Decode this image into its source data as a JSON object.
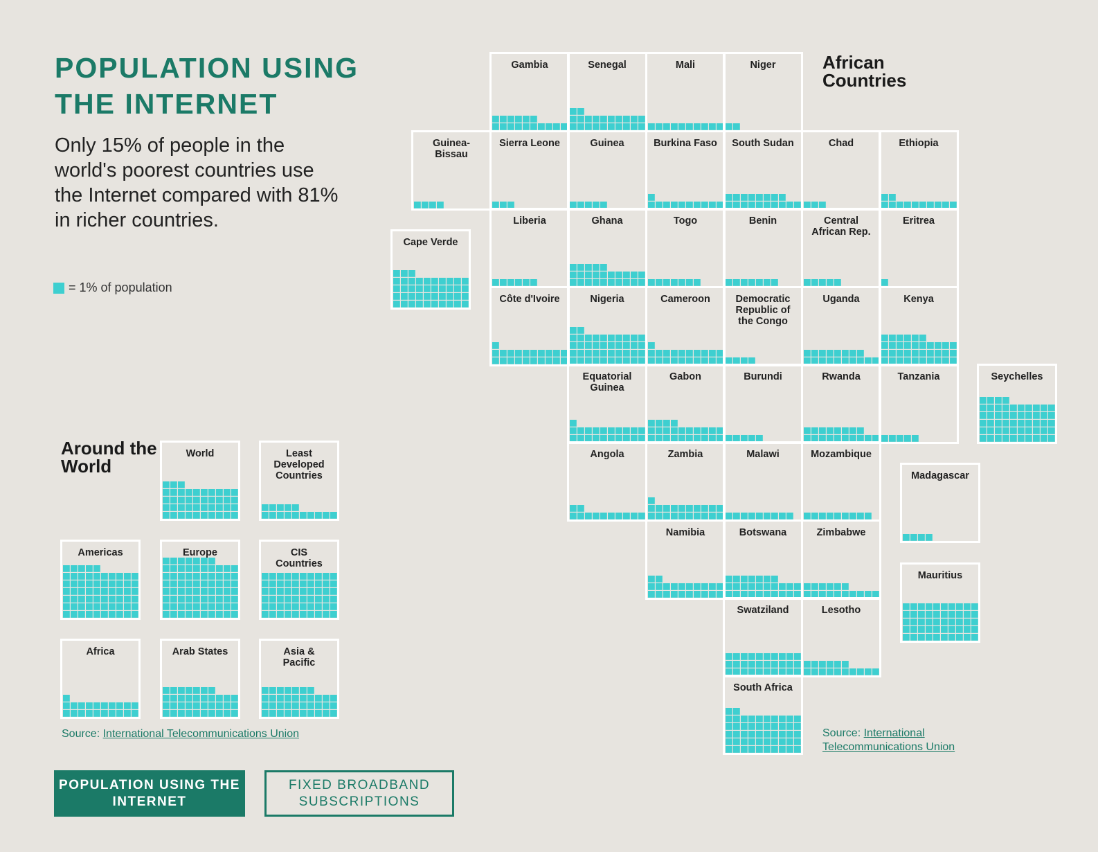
{
  "header": {
    "title": "POPULATION USING THE INTERNET",
    "subtitle": "Only 15% of people in the world's poorest countries use the Internet compared with 81% in richer countries.",
    "legend_text": "= 1% of population"
  },
  "colors": {
    "accent": "#1b7a67",
    "cell": "#3ecfd0",
    "tile_border": "#ffffff",
    "background": "#e7e4df"
  },
  "africa": {
    "heading": "African Countries"
  },
  "world": {
    "heading": "Around the World"
  },
  "sources": {
    "world_prefix": "Source: ",
    "world_link": "International Telecommunications Union",
    "africa_prefix": "Source: ",
    "africa_link": "International Telecommunications Union"
  },
  "buttons": {
    "internet": "POPULATION USING THE INTERNET",
    "broadband": "FIXED BROADBAND SUBSCRIPTIONS"
  },
  "chart_data": [
    {
      "type": "waffle",
      "title": "African Countries",
      "unit": "1 square = 1% of population",
      "series": [
        {
          "name": "Gambia",
          "value": 16
        },
        {
          "name": "Senegal",
          "value": 22
        },
        {
          "name": "Mali",
          "value": 10
        },
        {
          "name": "Niger",
          "value": 2
        },
        {
          "name": "Guinea-\nBissau",
          "value": 4
        },
        {
          "name": "Sierra Leone",
          "value": 3
        },
        {
          "name": "Guinea",
          "value": 5
        },
        {
          "name": "Burkina Faso",
          "value": 11
        },
        {
          "name": "South Sudan",
          "value": 18
        },
        {
          "name": "Chad",
          "value": 3
        },
        {
          "name": "Ethiopia",
          "value": 12
        },
        {
          "name": "Cape Verde",
          "value": 43
        },
        {
          "name": "Liberia",
          "value": 6
        },
        {
          "name": "Ghana",
          "value": 25
        },
        {
          "name": "Togo",
          "value": 7
        },
        {
          "name": "Benin",
          "value": 7
        },
        {
          "name": "Central\nAfrican Rep.",
          "value": 5
        },
        {
          "name": "Eritrea",
          "value": 1
        },
        {
          "name": "Côte d'Ivoire",
          "value": 21
        },
        {
          "name": "Nigeria",
          "value": 42
        },
        {
          "name": "Cameroon",
          "value": 21
        },
        {
          "name": "Democratic\nRepublic of\nthe Congo",
          "value": 4
        },
        {
          "name": "Uganda",
          "value": 18
        },
        {
          "name": "Kenya",
          "value": 36
        },
        {
          "name": "Equatorial\nGuinea",
          "value": 21
        },
        {
          "name": "Gabon",
          "value": 24
        },
        {
          "name": "Burundi",
          "value": 5
        },
        {
          "name": "Rwanda",
          "value": 18
        },
        {
          "name": "Tanzania",
          "value": 5
        },
        {
          "name": "Seychelles",
          "value": 54
        },
        {
          "name": "Angola",
          "value": 12
        },
        {
          "name": "Zambia",
          "value": 21
        },
        {
          "name": "Malawi",
          "value": 9
        },
        {
          "name": "Mozambique",
          "value": 9
        },
        {
          "name": "Madagascar",
          "value": 4
        },
        {
          "name": "Namibia",
          "value": 22
        },
        {
          "name": "Botswana",
          "value": 27
        },
        {
          "name": "Zimbabwe",
          "value": 16
        },
        {
          "name": "Mauritius",
          "value": 50
        },
        {
          "name": "Swatziland",
          "value": 30
        },
        {
          "name": "Lesotho",
          "value": 16
        },
        {
          "name": "South Africa",
          "value": 52
        }
      ]
    },
    {
      "type": "waffle",
      "title": "Around the World",
      "unit": "1 square = 1% of population",
      "series": [
        {
          "name": "World",
          "value": 43
        },
        {
          "name": "Least\nDeveloped\nCountries",
          "value": 15
        },
        {
          "name": "Americas",
          "value": 65
        },
        {
          "name": "Europe",
          "value": 77
        },
        {
          "name": "CIS\nCountries",
          "value": 60
        },
        {
          "name": "Africa",
          "value": 21
        },
        {
          "name": "Arab States",
          "value": 37
        },
        {
          "name": "Asia &\nPacific",
          "value": 37
        }
      ]
    }
  ]
}
